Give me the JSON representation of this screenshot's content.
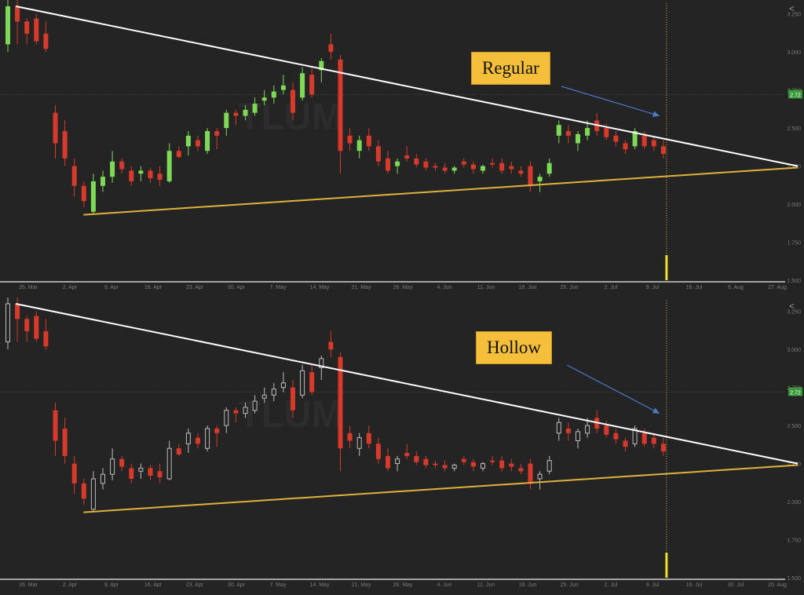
{
  "panels": [
    {
      "id": "regular",
      "callout": "Regular",
      "watermark": "TLUM",
      "price_badge": "2.72",
      "share_icon": "share-icon"
    },
    {
      "id": "hollow",
      "callout": "Hollow",
      "watermark": "TLUM",
      "price_badge": "2.72",
      "share_icon": "share-icon"
    }
  ],
  "colors": {
    "up": "#7ed957",
    "down": "#d73a2a",
    "hollow_up": "#bdbdbd",
    "resistance": "#ffffff",
    "support": "#e0b23c",
    "arrow": "#4d79c9",
    "badge": "#3a9a3a"
  },
  "chart_data": [
    {
      "type": "candlestick",
      "style": "regular",
      "x_tick_labels": [
        "26. Mar",
        "2. Apr",
        "9. Apr",
        "16. Apr",
        "23. Apr",
        "30. Apr",
        "7. May",
        "14. May",
        "21. May",
        "28. May",
        "4. Jun",
        "11. Jun",
        "18. Jun",
        "25. Jun",
        "2. Jul",
        "9. Jul",
        "16. Jul",
        "6. Aug",
        "27. Aug"
      ],
      "y_tick_labels": [
        "3.250",
        "3.000",
        "2.750",
        "2.500",
        "2.250",
        "2.000",
        "1.750",
        "1.500"
      ],
      "ylim": [
        1.5,
        3.3
      ],
      "last_price": 2.72,
      "trendlines": [
        {
          "name": "resistance",
          "from": {
            "idx": 0,
            "price": 3.3
          },
          "to": {
            "idx": 100,
            "price": 2.25
          }
        },
        {
          "name": "support",
          "from": {
            "idx": 3,
            "price": 1.93
          },
          "to": {
            "idx": 100,
            "price": 2.24
          }
        }
      ],
      "volume_spike_idx": 69
    },
    {
      "type": "candlestick",
      "style": "hollow",
      "x_tick_labels": [
        "26. Mar",
        "2. Apr",
        "9. Apr",
        "16. Apr",
        "23. Apr",
        "30. Apr",
        "7. May",
        "14. May",
        "21. May",
        "28. May",
        "4. Jun",
        "11. Jun",
        "18. Jun",
        "25. Jun",
        "2. Jul",
        "9. Jul",
        "16. Jul",
        "30. Jul",
        "20. Aug"
      ],
      "y_tick_labels": [
        "3.250",
        "3.000",
        "2.750",
        "2.500",
        "2.250",
        "2.000",
        "1.750",
        "1.500"
      ],
      "ylim": [
        1.5,
        3.3
      ],
      "last_price": 2.72,
      "trendlines": [
        {
          "name": "resistance",
          "from": {
            "idx": 0,
            "price": 3.3
          },
          "to": {
            "idx": 100,
            "price": 2.25
          }
        },
        {
          "name": "support",
          "from": {
            "idx": 3,
            "price": 1.93
          },
          "to": {
            "idx": 100,
            "price": 2.24
          }
        }
      ],
      "volume_spike_idx": 69
    }
  ],
  "candles": [
    [
      3.05,
      3.4,
      3.0,
      3.3
    ],
    [
      3.3,
      3.35,
      3.05,
      3.2
    ],
    [
      3.2,
      3.22,
      3.05,
      3.12
    ],
    [
      3.22,
      3.25,
      3.05,
      3.07
    ],
    [
      3.12,
      3.2,
      3.0,
      3.02
    ],
    [
      2.6,
      2.65,
      2.3,
      2.4
    ],
    [
      2.48,
      2.55,
      2.25,
      2.3
    ],
    [
      2.25,
      2.3,
      2.05,
      2.12
    ],
    [
      2.12,
      2.15,
      1.98,
      2.02
    ],
    [
      1.95,
      2.2,
      1.93,
      2.15
    ],
    [
      2.12,
      2.22,
      2.08,
      2.18
    ],
    [
      2.18,
      2.35,
      2.14,
      2.28
    ],
    [
      2.28,
      2.3,
      2.2,
      2.23
    ],
    [
      2.22,
      2.25,
      2.12,
      2.15
    ],
    [
      2.2,
      2.25,
      2.15,
      2.22
    ],
    [
      2.22,
      2.24,
      2.14,
      2.17
    ],
    [
      2.2,
      2.25,
      2.12,
      2.16
    ],
    [
      2.15,
      2.4,
      2.14,
      2.35
    ],
    [
      2.35,
      2.38,
      2.3,
      2.31
    ],
    [
      2.38,
      2.48,
      2.32,
      2.45
    ],
    [
      2.42,
      2.45,
      2.35,
      2.38
    ],
    [
      2.35,
      2.5,
      2.33,
      2.48
    ],
    [
      2.48,
      2.5,
      2.36,
      2.45
    ],
    [
      2.5,
      2.62,
      2.45,
      2.6
    ],
    [
      2.6,
      2.62,
      2.52,
      2.58
    ],
    [
      2.58,
      2.65,
      2.55,
      2.62
    ],
    [
      2.6,
      2.7,
      2.58,
      2.66
    ],
    [
      2.68,
      2.75,
      2.65,
      2.7
    ],
    [
      2.7,
      2.78,
      2.66,
      2.74
    ],
    [
      2.75,
      2.85,
      2.72,
      2.78
    ],
    [
      2.75,
      2.8,
      2.55,
      2.6
    ],
    [
      2.7,
      2.9,
      2.68,
      2.86
    ],
    [
      2.85,
      2.9,
      2.7,
      2.72
    ],
    [
      2.88,
      2.96,
      2.8,
      2.94
    ],
    [
      3.05,
      3.12,
      2.95,
      3.0
    ],
    [
      2.95,
      2.98,
      2.2,
      2.35
    ],
    [
      2.45,
      2.5,
      2.35,
      2.4
    ],
    [
      2.35,
      2.45,
      2.3,
      2.42
    ],
    [
      2.45,
      2.5,
      2.35,
      2.38
    ],
    [
      2.38,
      2.42,
      2.25,
      2.28
    ],
    [
      2.3,
      2.35,
      2.2,
      2.22
    ],
    [
      2.25,
      2.3,
      2.2,
      2.28
    ],
    [
      2.32,
      2.38,
      2.28,
      2.3
    ],
    [
      2.3,
      2.33,
      2.24,
      2.26
    ],
    [
      2.28,
      2.3,
      2.22,
      2.24
    ],
    [
      2.25,
      2.27,
      2.22,
      2.24
    ],
    [
      2.24,
      2.27,
      2.2,
      2.22
    ],
    [
      2.22,
      2.25,
      2.2,
      2.24
    ],
    [
      2.28,
      2.3,
      2.24,
      2.26
    ],
    [
      2.26,
      2.28,
      2.2,
      2.23
    ],
    [
      2.22,
      2.26,
      2.2,
      2.25
    ],
    [
      2.27,
      2.3,
      2.24,
      2.26
    ],
    [
      2.27,
      2.3,
      2.2,
      2.22
    ],
    [
      2.25,
      2.28,
      2.2,
      2.23
    ],
    [
      2.22,
      2.25,
      2.18,
      2.2
    ],
    [
      2.25,
      2.28,
      2.08,
      2.12
    ],
    [
      2.15,
      2.2,
      2.08,
      2.18
    ],
    [
      2.2,
      2.3,
      2.18,
      2.27
    ],
    [
      2.45,
      2.55,
      2.4,
      2.52
    ],
    [
      2.48,
      2.52,
      2.4,
      2.45
    ],
    [
      2.4,
      2.48,
      2.35,
      2.46
    ],
    [
      2.45,
      2.55,
      2.42,
      2.5
    ],
    [
      2.55,
      2.6,
      2.45,
      2.48
    ],
    [
      2.5,
      2.53,
      2.42,
      2.44
    ],
    [
      2.45,
      2.48,
      2.38,
      2.41
    ],
    [
      2.4,
      2.42,
      2.33,
      2.36
    ],
    [
      2.38,
      2.5,
      2.36,
      2.48
    ],
    [
      2.45,
      2.48,
      2.36,
      2.38
    ],
    [
      2.42,
      2.45,
      2.35,
      2.38
    ],
    [
      2.38,
      2.42,
      2.3,
      2.33
    ]
  ]
}
